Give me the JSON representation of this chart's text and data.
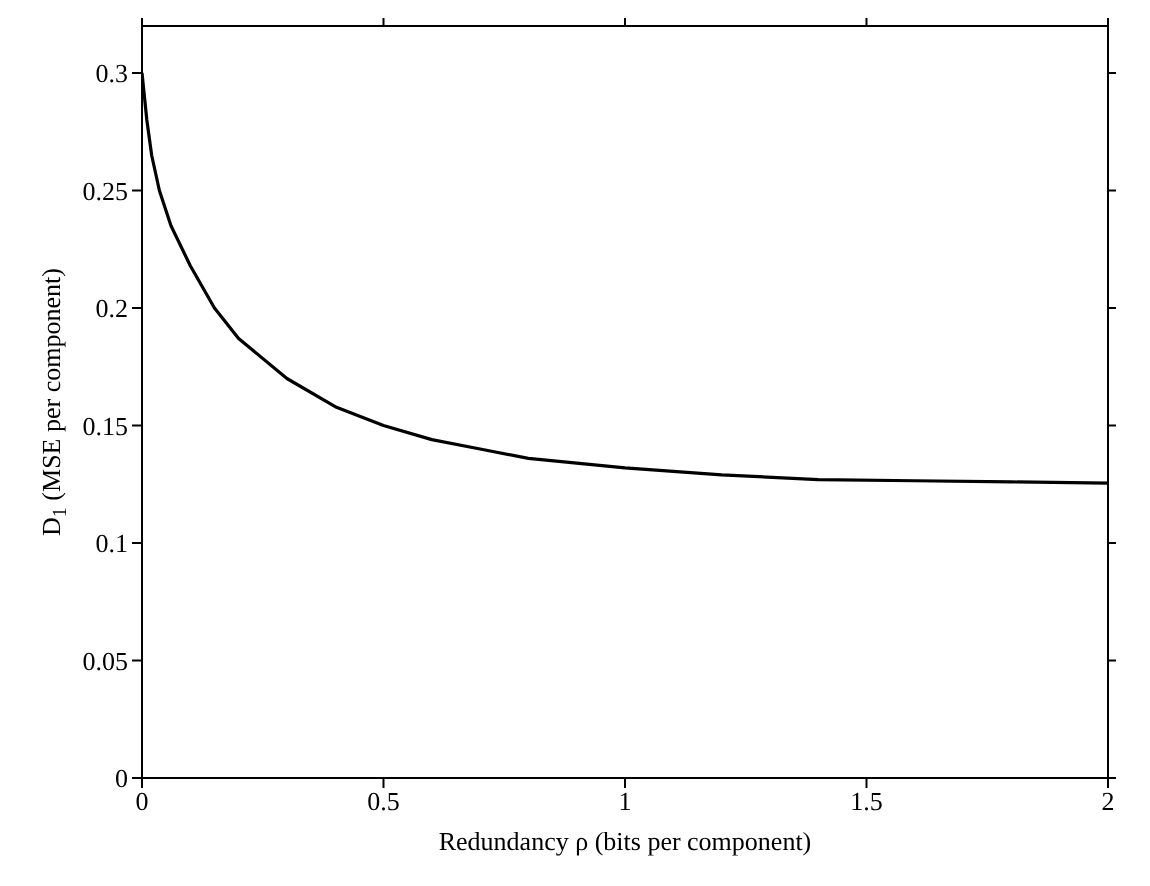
{
  "chart_data": {
    "type": "line",
    "xlabel": "Redundancy ρ (bits per component)",
    "ylabel": "D$_{1}$ (MSE per component)",
    "xlim": [
      0,
      2
    ],
    "xticks": [
      0,
      0.5,
      1,
      1.5,
      2
    ],
    "ylim": [
      0,
      0.32
    ],
    "yticks": [
      0,
      0.05,
      0.1,
      0.15,
      0.2,
      0.25,
      0.3
    ],
    "grid": false,
    "legend": false,
    "marker": "none",
    "line_style": "solid",
    "series": [
      {
        "color": "#000000",
        "x": [
          0,
          0.01,
          0.02,
          0.036,
          0.06,
          0.1,
          0.15,
          0.2,
          0.3,
          0.4,
          0.5,
          0.6,
          0.7,
          0.8,
          0.9,
          1,
          1.2,
          1.4,
          1.6,
          1.8,
          2
        ],
        "values": [
          0.3,
          0.28,
          0.265,
          0.25,
          0.235,
          0.218,
          0.2,
          0.187,
          0.17,
          0.158,
          0.15,
          0.144,
          0.14,
          0.136,
          0.134,
          0.132,
          0.129,
          0.127,
          0.1265,
          0.126,
          0.1255
        ]
      }
    ]
  }
}
